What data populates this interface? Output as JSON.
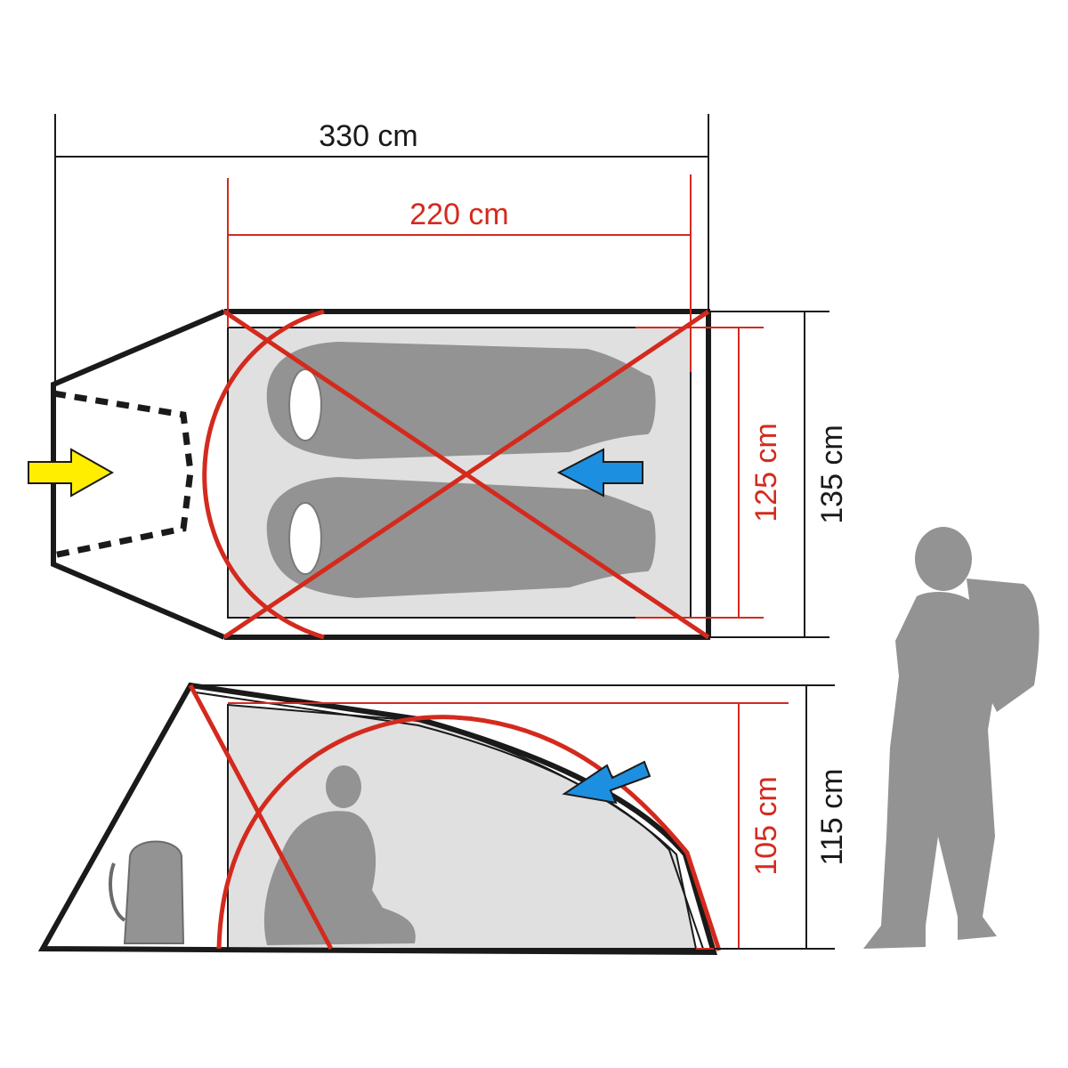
{
  "dimensions": {
    "total_length": "330 cm",
    "inner_length": "220 cm",
    "inner_width": "125 cm",
    "total_width": "135 cm",
    "inner_height": "105 cm",
    "total_height": "115 cm"
  },
  "colors": {
    "outline": "#1a1a1a",
    "pole_red": "#d42a1e",
    "inner_tent_fill": "#e0e0e0",
    "silhouette_gray": "#939393",
    "entry_arrow_yellow": "#ffee00",
    "vent_arrow_blue": "#1d8fe0"
  },
  "icons": {
    "entrance_arrow": "yellow-arrow-icon",
    "vent_arrow_top": "blue-arrow-icon",
    "vent_arrow_side": "blue-arrow-icon",
    "sleeping_bags": "sleeping-bag-icon",
    "backpack": "backpack-icon",
    "sitting_person": "sitting-person-icon",
    "standing_hiker": "hiker-icon"
  }
}
